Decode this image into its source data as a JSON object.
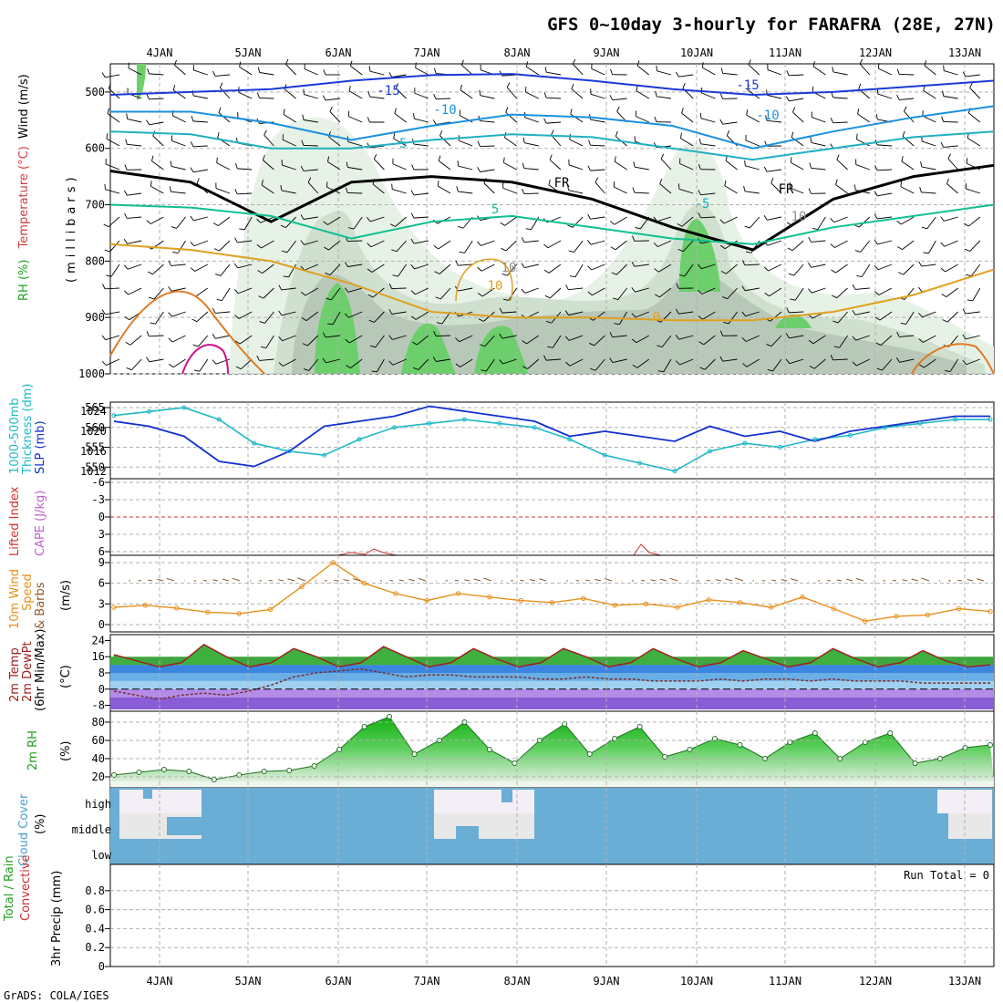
{
  "title": "GFS 0~10day 3-hourly for FARAFRA (28E, 27N)",
  "footer": "GrADS: COLA/IGES",
  "colors": {
    "thick_cyan": "#20b8c8",
    "slp_blue": "#1030d0",
    "wind_orange": "#e8901c",
    "temp_red": "#a02020",
    "cloud_blue": "#6aaed6",
    "rh_green": "#30c030",
    "cape_violet": "#c060d0"
  },
  "chart_data": [
    {
      "id": "upper-air",
      "type": "contour",
      "x_ticks": [
        "4JAN",
        "5JAN",
        "6JAN",
        "7JAN",
        "8JAN",
        "9JAN",
        "10JAN",
        "11JAN",
        "12JAN",
        "13JAN"
      ],
      "y_ticks": [
        "500",
        "600",
        "700",
        "800",
        "900",
        "1000"
      ],
      "ylabel_parts": [
        "RH (%)",
        "Temperature (°C)",
        "Wind (m/s)",
        "(millibars)"
      ],
      "ylim": [
        1000,
        450
      ],
      "contour_labels": [
        "-15",
        "-15",
        "-10",
        "-10",
        "-5",
        "FR",
        "FR",
        "-5",
        "5",
        "10",
        "10",
        "0",
        "10"
      ],
      "temperature_contours": [
        {
          "label": "-15",
          "color": "#1a3ad8",
          "p": [
            505,
            500,
            495,
            480,
            470,
            468,
            480,
            495,
            505,
            500,
            490,
            480
          ]
        },
        {
          "label": "-10",
          "color": "#1a90e0",
          "p": [
            535,
            535,
            555,
            585,
            560,
            540,
            545,
            560,
            600,
            570,
            545,
            525
          ]
        },
        {
          "label": "-5",
          "color": "#20b0c0",
          "p": [
            570,
            575,
            600,
            600,
            585,
            575,
            580,
            600,
            620,
            600,
            580,
            570
          ]
        },
        {
          "label": "FR",
          "color": "#000000",
          "p": [
            640,
            660,
            730,
            660,
            650,
            660,
            690,
            740,
            780,
            690,
            650,
            630
          ]
        },
        {
          "label": "5",
          "color": "#10c090",
          "p": [
            700,
            705,
            720,
            760,
            730,
            720,
            740,
            760,
            770,
            740,
            720,
            700
          ]
        },
        {
          "label": "0",
          "color": "#e0a020",
          "p": [
            770,
            780,
            800,
            840,
            890,
            900,
            900,
            905,
            905,
            890,
            860,
            815
          ]
        }
      ]
    },
    {
      "id": "slp-thickness",
      "type": "line",
      "ylabel_parts": [
        "1000-500mb",
        "Thickness (dm)",
        "SLP (mb)"
      ],
      "left_ticks": [
        "565",
        "560",
        "555",
        "550"
      ],
      "right_ticks": [
        "1024",
        "1020",
        "1016",
        "1012"
      ],
      "series": [
        {
          "name": "Thickness (dm)",
          "values": [
            563,
            564,
            565,
            562,
            556,
            554,
            553,
            557,
            560,
            561,
            562,
            561,
            560,
            557,
            553,
            551,
            549,
            554,
            556,
            555,
            557,
            558,
            560,
            561,
            562,
            562
          ]
        },
        {
          "name": "SLP (mb)",
          "values": [
            1022,
            1021,
            1019,
            1014,
            1013,
            1016,
            1021,
            1022,
            1023,
            1025,
            1024,
            1023,
            1022,
            1019,
            1020,
            1019,
            1018,
            1021,
            1019,
            1020,
            1018,
            1020,
            1021,
            1022,
            1023,
            1023
          ]
        }
      ]
    },
    {
      "id": "lifted-cape",
      "type": "line",
      "ylabel_parts": [
        "Lifted Index",
        "CAPE (J/kg)"
      ],
      "left_ticks": [
        "-6",
        "-3",
        "0",
        "3",
        "6"
      ],
      "ylim": [
        -6,
        6
      ]
    },
    {
      "id": "wind-10m",
      "type": "line",
      "ylabel_parts": [
        "10m Wind",
        "Speed",
        "& Barbs",
        "(m/s)"
      ],
      "left_ticks": [
        "9",
        "6",
        "3",
        "0"
      ],
      "ylim": [
        0,
        9
      ],
      "series": [
        {
          "name": "10m Wind Speed",
          "values": [
            2.5,
            2.8,
            2.4,
            1.8,
            1.6,
            2.2,
            5.5,
            9,
            6,
            4.5,
            3.5,
            4.5,
            4,
            3.5,
            3.2,
            3.8,
            2.8,
            3,
            2.5,
            3.6,
            3.2,
            2.5,
            4,
            2.3,
            0.5,
            1.2,
            1.4,
            2.3,
            1.9
          ]
        }
      ]
    },
    {
      "id": "temp-2m",
      "type": "area",
      "ylabel_parts": [
        "2m Temp",
        "2m DewPt",
        "(6hr Min/Max)",
        "(°C)"
      ],
      "left_ticks": [
        "24",
        "16",
        "8",
        "0",
        "-8"
      ],
      "ylim": [
        -10,
        26
      ],
      "series": [
        {
          "name": "2m Temp",
          "values": [
            17,
            14,
            11,
            13,
            22,
            16,
            11,
            13,
            20,
            16,
            11,
            13,
            21,
            16,
            11,
            13,
            20,
            15,
            11,
            13,
            20,
            16,
            11,
            13,
            20,
            15,
            11,
            13,
            19,
            15,
            11,
            13,
            20,
            15,
            11,
            13,
            19,
            14,
            11,
            12
          ]
        },
        {
          "name": "2m DewPt",
          "values": [
            -1,
            -3,
            -5,
            -3,
            -2,
            -3,
            -1,
            2,
            6,
            8,
            9,
            10,
            8,
            6,
            7,
            7,
            6,
            6,
            6,
            5,
            5,
            6,
            5,
            5,
            4,
            4,
            4,
            5,
            4,
            5,
            5,
            4,
            5,
            4,
            4,
            4,
            3,
            3,
            3,
            3
          ]
        }
      ]
    },
    {
      "id": "rh-2m",
      "type": "area",
      "ylabel_parts": [
        "2m RH",
        "(%)"
      ],
      "left_ticks": [
        "80",
        "60",
        "40",
        "20"
      ],
      "ylim": [
        10,
        90
      ],
      "series": [
        {
          "name": "2m RH",
          "values": [
            22,
            25,
            28,
            26,
            17,
            22,
            26,
            27,
            32,
            50,
            75,
            86,
            45,
            60,
            80,
            50,
            35,
            60,
            78,
            45,
            62,
            75,
            42,
            50,
            62,
            55,
            40,
            58,
            68,
            40,
            58,
            68,
            35,
            40,
            52,
            55
          ]
        }
      ]
    },
    {
      "id": "cloud-cover",
      "type": "heatmap",
      "ylabel_parts": [
        "Cloud Cover",
        "(%)"
      ],
      "row_labels": [
        "high",
        "middle",
        "low"
      ]
    },
    {
      "id": "precip",
      "type": "bar",
      "ylabel_parts": [
        "Total / Rain",
        "Convective",
        "3hr Precip (mm)"
      ],
      "left_ticks": [
        "0.8",
        "0.6",
        "0.4",
        "0.2",
        "0"
      ],
      "ylim": [
        0,
        1
      ],
      "run_total": "Run Total = 0"
    }
  ]
}
